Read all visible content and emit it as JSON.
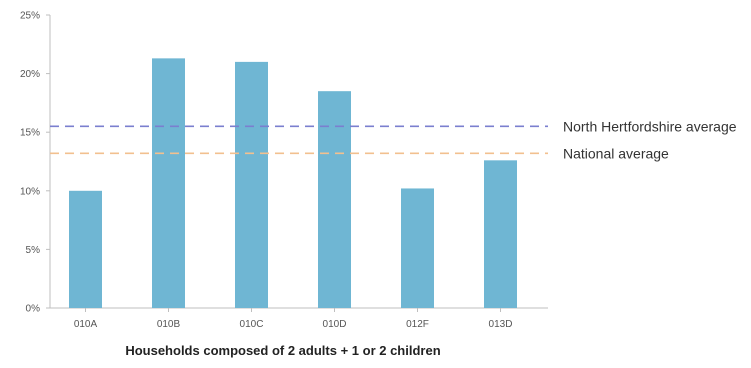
{
  "chart_data": {
    "type": "bar",
    "categories": [
      "010A",
      "010B",
      "010C",
      "010D",
      "012F",
      "013D"
    ],
    "values": [
      10.0,
      21.3,
      21.0,
      18.5,
      10.2,
      12.6
    ],
    "title": "",
    "xlabel": "Households composed of 2 adults + 1 or 2 children",
    "ylabel": "",
    "ylim": [
      0,
      25
    ],
    "yticks": [
      "0%",
      "5%",
      "10%",
      "15%",
      "20%",
      "25%"
    ],
    "ytick_values": [
      0,
      5,
      10,
      15,
      20,
      25
    ],
    "grid": false,
    "reference_lines": [
      {
        "name": "North Hertfordshire average",
        "value": 15.5,
        "color": "#7b7fcf"
      },
      {
        "name": "National average",
        "value": 13.2,
        "color": "#f2c08f"
      }
    ],
    "bar_color": "#6fb6d3",
    "axis_color": "#bfbfbf"
  }
}
